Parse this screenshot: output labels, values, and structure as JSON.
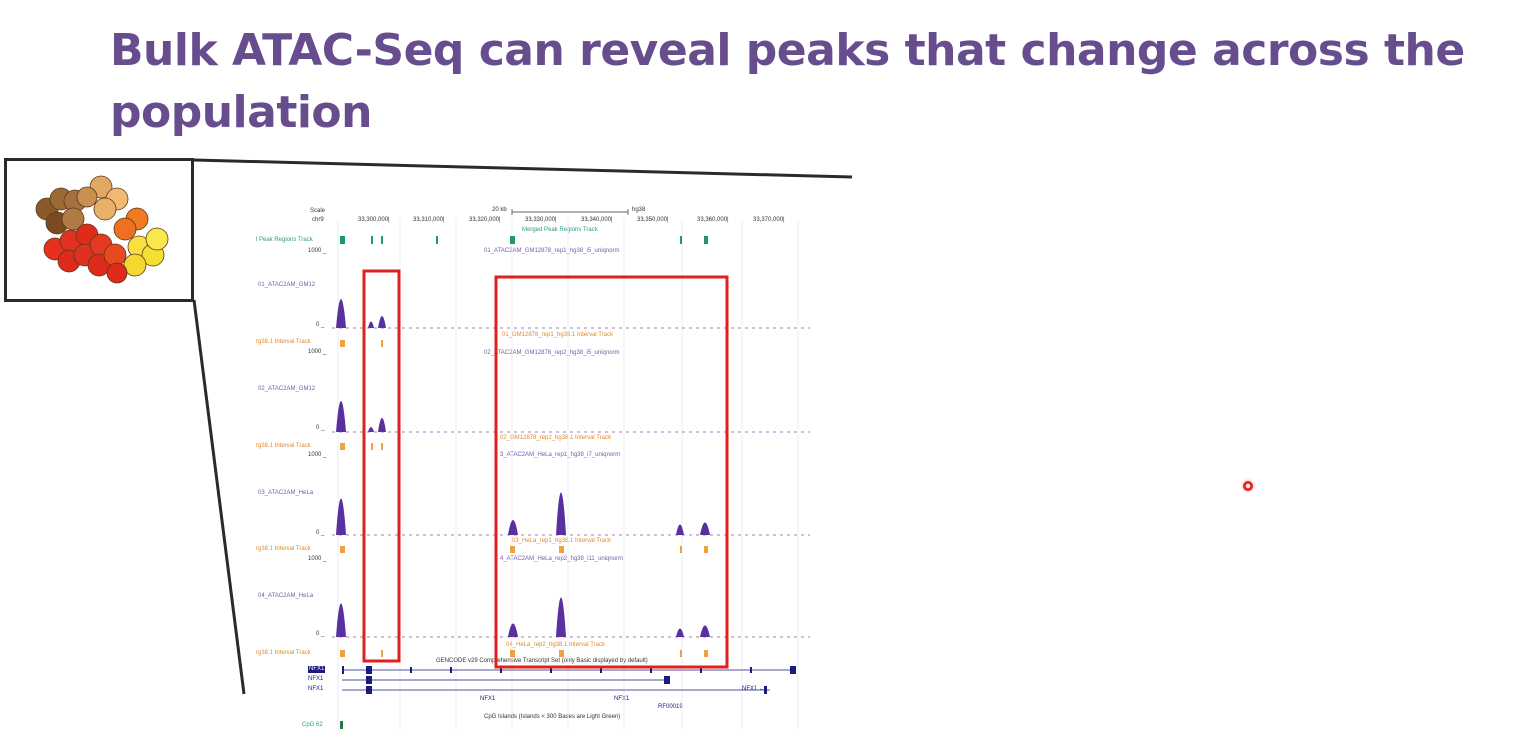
{
  "slide": {
    "title": "Bulk ATAC-Seq can reveal peaks that change across the population"
  },
  "browser": {
    "header": {
      "scale_label": "Scale",
      "chr_label": "chr9",
      "scale_bar_text": "20 kb",
      "assembly": "hg38",
      "positions": [
        "33,300,000|",
        "33,310,000|",
        "33,320,000|",
        "33,330,000|",
        "33,340,000|",
        "33,350,000|",
        "33,360,000|",
        "33,370,000|"
      ]
    },
    "merged": {
      "left_label": "l Peak Regions Track",
      "center_label": "Merged Peak Regions Track"
    },
    "tracks": [
      {
        "label": "01_ATAC2AM_GM12",
        "scale_max": "1000 _",
        "scale_min": "0 _",
        "title": "01_ATAC2AM_GM12878_rep1_hg38_i5_uniqnorm",
        "interval_label": "rg38.1 Interval Track",
        "interval_title": "01_GM12878_rep1_hg38.1 Interval Track"
      },
      {
        "label": "02_ATAC2AM_GM12",
        "scale_max": "1000 _",
        "scale_min": "0 _",
        "title": "02_ATAC2AM_GM12878_rep2_hg38_i5_uniqnorm",
        "interval_label": "rg38.1 Interval Track",
        "interval_title": "02_GM12878_rep2_hg38.1 Interval Track"
      },
      {
        "label": "03_ATAC2AM_HeLa",
        "scale_max": "1000 _",
        "scale_min": "0 _",
        "title": "3_ATAC2AM_HeLa_rep1_hg38_i7_uniqnorm",
        "interval_label": "rg38.1 Interval Track",
        "interval_title": "03_HeLa_rep1_hg38.1 Interval Track"
      },
      {
        "label": "04_ATAC2AM_HeLa",
        "scale_max": "1000 _",
        "scale_min": "0 _",
        "title": "4_ATAC2AM_HeLa_rep2_hg38_i11_uniqnorm",
        "interval_label": "rg38.1 Interval Track",
        "interval_title": "04_HeLa_rep2_hg38.1 Interval Track"
      }
    ],
    "genes": {
      "gencode_title": "GENCODE v29 Comprehensive Transcript Set (only Basic displayed by default)",
      "rows": [
        "NFX1",
        "NFX1",
        "NFX1"
      ],
      "gene_labels": [
        "NFX1",
        "NFX1",
        "NFX1 ←",
        "RF00019"
      ],
      "cpg_title": "CpG Islands (Islands < 300 Bases are Light Green)",
      "cpg_label": "CpG 62"
    }
  },
  "colors": {
    "title": "#674d8e",
    "signal": "#5a2fa0",
    "interval": "#f0a040",
    "merged": "#1e9a6a",
    "highlight": "#e02020",
    "gene": "#1a1a80"
  },
  "icons": [
    "cell-cluster-icon",
    "laser-pointer-icon"
  ]
}
